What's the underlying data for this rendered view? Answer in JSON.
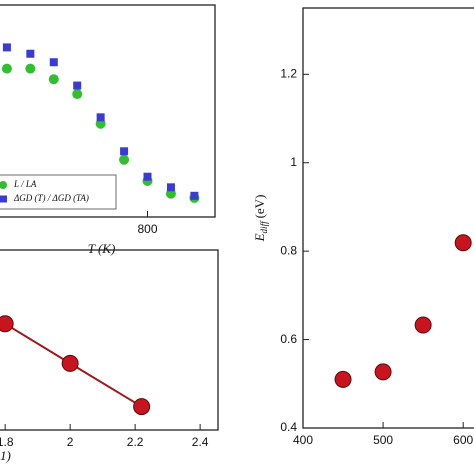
{
  "chart_data": [
    {
      "type": "scatter",
      "xlabel": "T (K)",
      "x": [
        500,
        550,
        600,
        650,
        700,
        750,
        800,
        850,
        900
      ],
      "series": [
        {
          "name": "L / LA",
          "color": "#2fbf2f",
          "marker": "circle",
          "values": [
            0.7,
            0.7,
            0.65,
            0.58,
            0.44,
            0.27,
            0.17,
            0.11,
            0.09
          ]
        },
        {
          "name": "ΔGD (T) / ΔGD (TA)",
          "color": "#3b3bd4",
          "marker": "square",
          "values": [
            0.8,
            0.77,
            0.73,
            0.62,
            0.47,
            0.31,
            0.19,
            0.14,
            0.1
          ]
        }
      ],
      "xlim": [
        481,
        944
      ],
      "ylim": [
        0,
        1
      ],
      "xticks": [
        800
      ],
      "legend": "lower left"
    },
    {
      "type": "line",
      "xlabel": "1)",
      "x": [
        1.8,
        2.0,
        2.22
      ],
      "series": [
        {
          "color": "#c8141e",
          "values": [
            0.59,
            0.37,
            0.13
          ]
        }
      ],
      "xlim": [
        1.778,
        2.455
      ],
      "ylim": [
        0,
        1
      ],
      "xticks": [
        1.8,
        2,
        2.2,
        2.4
      ]
    },
    {
      "type": "scatter",
      "ylabel": "E",
      "ylabel_sub": "diff",
      "ylabel_unit": "(eV)",
      "x": [
        450,
        500,
        550,
        600
      ],
      "series": [
        {
          "color": "#c8141e",
          "marker": "bigcircle",
          "values": [
            0.51,
            0.527,
            0.633,
            0.819
          ]
        }
      ],
      "xlim": [
        400,
        621
      ],
      "ylim": [
        0.4,
        1.35
      ],
      "xticks": [
        400,
        500,
        600
      ],
      "yticks": [
        0.4,
        0.6,
        0.8,
        1,
        1.2
      ]
    }
  ]
}
